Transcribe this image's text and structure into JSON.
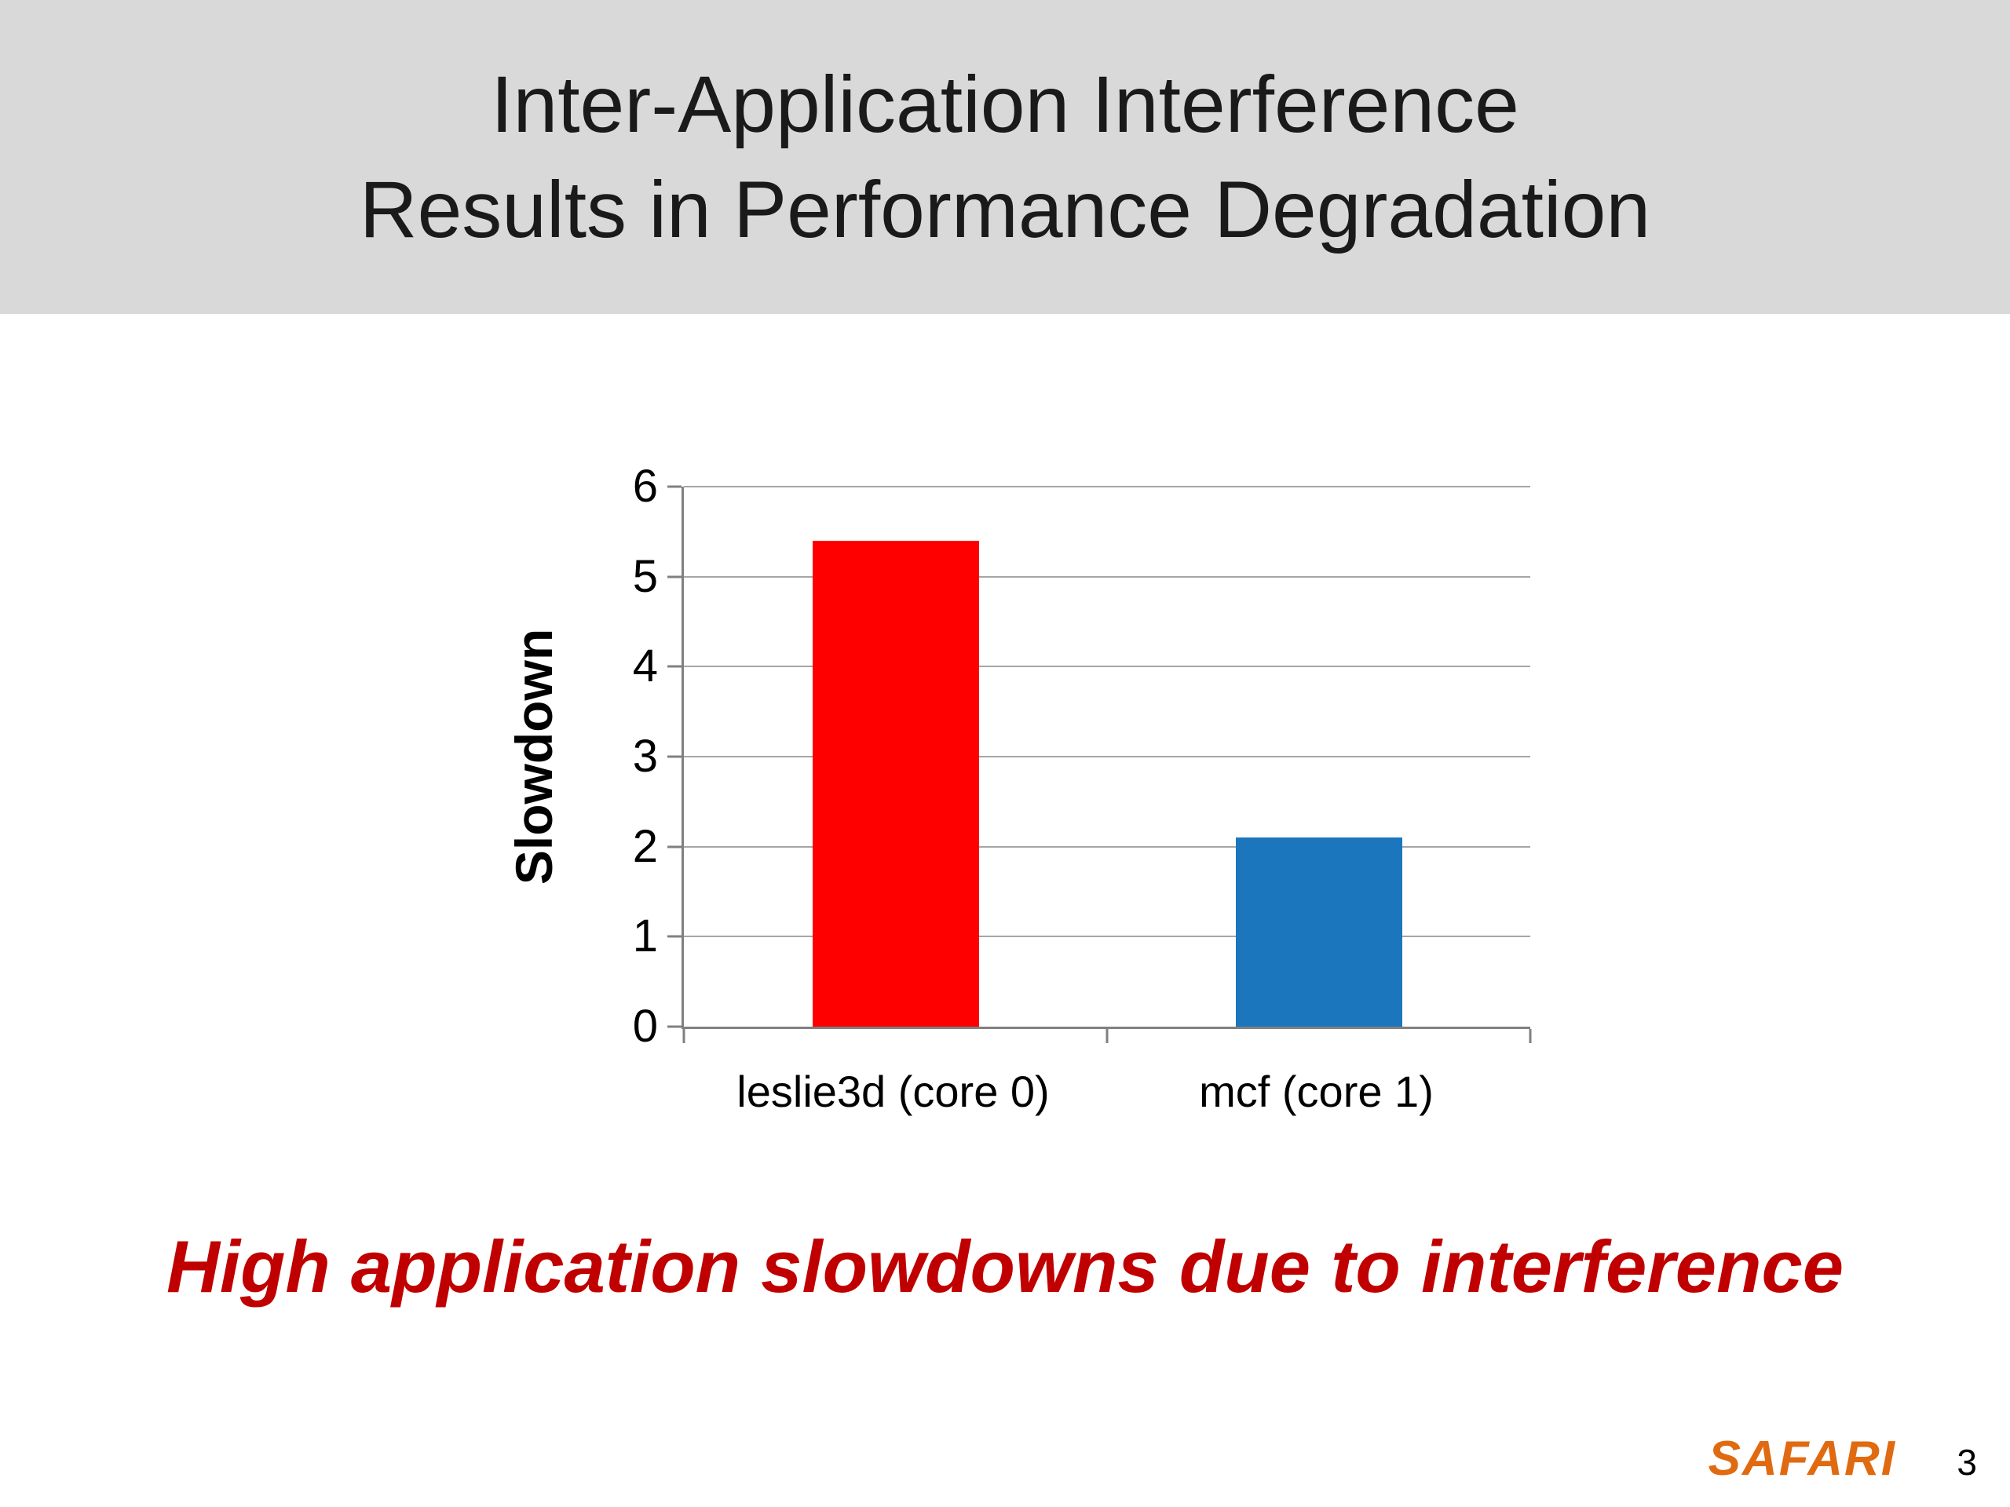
{
  "slide": {
    "title_lines": [
      "Inter-Application Interference",
      "Results in Performance Degradation"
    ],
    "takeaway": "High application slowdowns due to interference",
    "footer": {
      "logo_text": "SAFARI",
      "page_number": "3"
    }
  },
  "chart_data": {
    "type": "bar",
    "title": "",
    "xlabel": "",
    "ylabel": "Slowdown",
    "categories": [
      "leslie3d (core 0)",
      "mcf (core 1)"
    ],
    "values": [
      5.4,
      2.1
    ],
    "bar_colors": [
      "#FF0000",
      "#1B76BD"
    ],
    "ylim": [
      0,
      6
    ],
    "ytick_step": 1,
    "grid": "horizontal",
    "legend": "none"
  },
  "colors": {
    "banner": "#D9D9D9",
    "title_text": "#1A1A1A",
    "takeaway": "#C00000",
    "logo": "#E06A10",
    "gridline": "#A6A6A6",
    "axis": "#808080"
  }
}
